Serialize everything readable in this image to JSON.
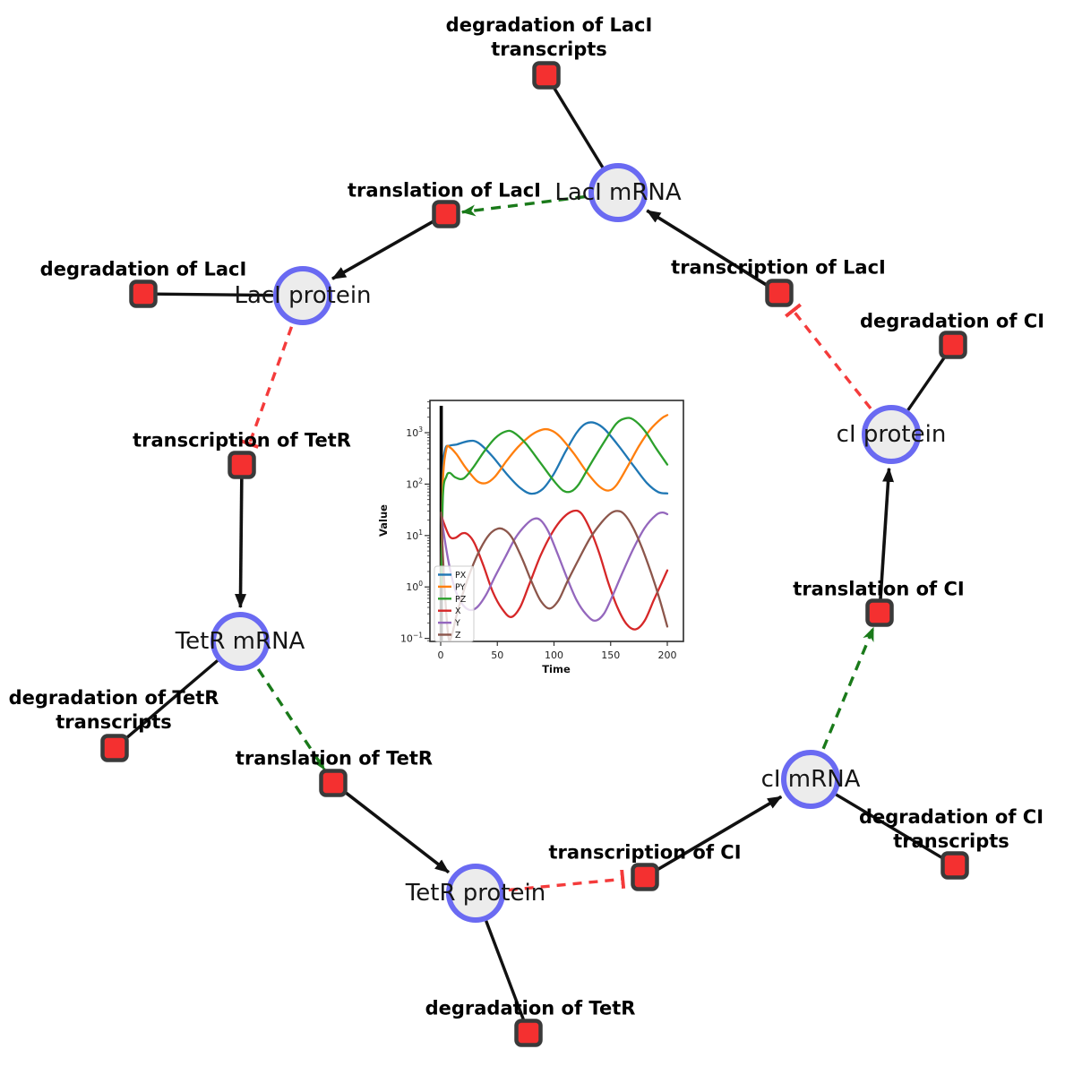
{
  "diagram": {
    "species": [
      {
        "id": "lacI_mRNA",
        "label": "LacI mRNA"
      },
      {
        "id": "lacI_protein",
        "label": "LacI protein"
      },
      {
        "id": "tetR_mRNA",
        "label": "TetR mRNA"
      },
      {
        "id": "tetR_protein",
        "label": "TetR protein"
      },
      {
        "id": "cI_mRNA",
        "label": "cI mRNA"
      },
      {
        "id": "cI_protein",
        "label": "cI protein"
      }
    ],
    "reactions": [
      {
        "id": "deg_lacI_tr",
        "label": "degradation of LacI\ntranscripts"
      },
      {
        "id": "transl_lacI",
        "label": "translation of LacI"
      },
      {
        "id": "transcr_lacI",
        "label": "transcription of LacI"
      },
      {
        "id": "deg_lacI",
        "label": "degradation of LacI"
      },
      {
        "id": "deg_cI",
        "label": "degradation of CI"
      },
      {
        "id": "transcr_tetR",
        "label": "transcription of TetR"
      },
      {
        "id": "transl_cI",
        "label": "translation of CI"
      },
      {
        "id": "deg_tetR_tr",
        "label": "degradation of TetR\ntranscripts"
      },
      {
        "id": "transl_tetR",
        "label": "translation of TetR"
      },
      {
        "id": "deg_cI_tr",
        "label": "degradation of CI\ntranscripts"
      },
      {
        "id": "transcr_cI",
        "label": "transcription of CI"
      },
      {
        "id": "deg_tetR",
        "label": "degradation of TetR"
      }
    ],
    "edge_types": {
      "production": {
        "color": "#111111",
        "style": "solid",
        "head": "arrow"
      },
      "consumption": {
        "color": "#111111",
        "style": "solid",
        "head": "none"
      },
      "modifier": {
        "color": "#1a7a1a",
        "style": "dashed",
        "head": "arrow"
      },
      "inhibition": {
        "color": "#f43b3b",
        "style": "dashed",
        "head": "tbar"
      }
    },
    "edges": [
      {
        "from": "transl_lacI",
        "to": "lacI_protein",
        "type": "production"
      },
      {
        "from": "transcr_lacI",
        "to": "lacI_mRNA",
        "type": "production"
      },
      {
        "from": "transcr_tetR",
        "to": "tetR_mRNA",
        "type": "production"
      },
      {
        "from": "transl_tetR",
        "to": "tetR_protein",
        "type": "production"
      },
      {
        "from": "transcr_cI",
        "to": "cI_mRNA",
        "type": "production"
      },
      {
        "from": "transl_cI",
        "to": "cI_protein",
        "type": "production"
      },
      {
        "from": "deg_lacI_tr",
        "to": "lacI_mRNA",
        "type": "consumption"
      },
      {
        "from": "deg_lacI",
        "to": "lacI_protein",
        "type": "consumption"
      },
      {
        "from": "deg_cI",
        "to": "cI_protein",
        "type": "consumption"
      },
      {
        "from": "deg_tetR_tr",
        "to": "tetR_mRNA",
        "type": "consumption"
      },
      {
        "from": "deg_cI_tr",
        "to": "cI_mRNA",
        "type": "consumption"
      },
      {
        "from": "deg_tetR",
        "to": "tetR_protein",
        "type": "consumption"
      },
      {
        "from": "lacI_mRNA",
        "to": "transl_lacI",
        "type": "modifier"
      },
      {
        "from": "tetR_mRNA",
        "to": "transl_tetR",
        "type": "modifier"
      },
      {
        "from": "cI_mRNA",
        "to": "transl_cI",
        "type": "modifier"
      },
      {
        "from": "lacI_protein",
        "to": "transcr_tetR",
        "type": "inhibition"
      },
      {
        "from": "tetR_protein",
        "to": "transcr_cI",
        "type": "inhibition"
      },
      {
        "from": "cI_protein",
        "to": "transcr_lacI",
        "type": "inhibition"
      }
    ],
    "colors": {
      "species_fill": "#ececec",
      "species_border": "#6a6af2",
      "reaction_fill": "#f43030",
      "reaction_border": "#3a3a3a"
    }
  },
  "chart_data": {
    "type": "line",
    "title": "",
    "xlabel": "Time",
    "ylabel": "Value",
    "x_ticks": [
      0,
      50,
      100,
      150,
      200
    ],
    "xlim": [
      -9.5,
      214
    ],
    "y_scale": "log",
    "y_tick_exponents": [
      3,
      2,
      1,
      0,
      -1
    ],
    "ylim_log10": [
      -1.06,
      3.63
    ],
    "grid": false,
    "legend_position": "lower left",
    "annotations": [
      {
        "type": "vline",
        "x": 0,
        "color": "#000000"
      }
    ],
    "series": [
      {
        "name": "PX",
        "color": "#1f77b4",
        "points": [
          [
            0.5,
            2
          ],
          [
            2,
            150
          ],
          [
            4,
            480
          ],
          [
            8,
            560
          ],
          [
            14,
            590
          ],
          [
            25,
            690
          ],
          [
            33,
            640
          ],
          [
            45,
            360
          ],
          [
            58,
            160
          ],
          [
            70,
            85
          ],
          [
            80,
            65
          ],
          [
            90,
            80
          ],
          [
            100,
            160
          ],
          [
            110,
            420
          ],
          [
            120,
            1000
          ],
          [
            128,
            1500
          ],
          [
            136,
            1550
          ],
          [
            145,
            1150
          ],
          [
            158,
            520
          ],
          [
            170,
            230
          ],
          [
            182,
            105
          ],
          [
            192,
            70
          ],
          [
            200,
            66
          ]
        ]
      },
      {
        "name": "PY",
        "color": "#ff7f0e",
        "points": [
          [
            0.5,
            1.5
          ],
          [
            2,
            120
          ],
          [
            5,
            480
          ],
          [
            8,
            520
          ],
          [
            14,
            380
          ],
          [
            22,
            210
          ],
          [
            32,
            115
          ],
          [
            40,
            105
          ],
          [
            48,
            140
          ],
          [
            58,
            280
          ],
          [
            68,
            520
          ],
          [
            80,
            900
          ],
          [
            90,
            1150
          ],
          [
            97,
            1120
          ],
          [
            105,
            850
          ],
          [
            118,
            380
          ],
          [
            130,
            160
          ],
          [
            140,
            90
          ],
          [
            148,
            75
          ],
          [
            155,
            95
          ],
          [
            165,
            220
          ],
          [
            175,
            550
          ],
          [
            185,
            1150
          ],
          [
            195,
            1900
          ],
          [
            200,
            2200
          ]
        ]
      },
      {
        "name": "PZ",
        "color": "#2ca02c",
        "points": [
          [
            0.5,
            1
          ],
          [
            2,
            60
          ],
          [
            5,
            140
          ],
          [
            8,
            165
          ],
          [
            13,
            135
          ],
          [
            20,
            128
          ],
          [
            28,
            200
          ],
          [
            38,
            420
          ],
          [
            48,
            780
          ],
          [
            57,
            1050
          ],
          [
            64,
            1020
          ],
          [
            75,
            620
          ],
          [
            88,
            260
          ],
          [
            100,
            115
          ],
          [
            108,
            75
          ],
          [
            115,
            72
          ],
          [
            122,
            100
          ],
          [
            132,
            240
          ],
          [
            145,
            700
          ],
          [
            155,
            1500
          ],
          [
            163,
            1900
          ],
          [
            170,
            1800
          ],
          [
            180,
            1100
          ],
          [
            190,
            500
          ],
          [
            200,
            240
          ]
        ]
      },
      {
        "name": "X",
        "color": "#d62728",
        "points": [
          [
            0.5,
            25
          ],
          [
            3,
            17
          ],
          [
            8,
            9.5
          ],
          [
            13,
            9
          ],
          [
            19,
            11
          ],
          [
            24,
            10.5
          ],
          [
            30,
            7
          ],
          [
            38,
            2.5
          ],
          [
            46,
            0.8
          ],
          [
            54,
            0.38
          ],
          [
            62,
            0.26
          ],
          [
            70,
            0.4
          ],
          [
            78,
            1.1
          ],
          [
            88,
            4
          ],
          [
            98,
            11
          ],
          [
            108,
            22
          ],
          [
            117,
            30
          ],
          [
            124,
            27
          ],
          [
            132,
            13
          ],
          [
            140,
            4.5
          ],
          [
            148,
            1.2
          ],
          [
            156,
            0.4
          ],
          [
            164,
            0.19
          ],
          [
            172,
            0.15
          ],
          [
            180,
            0.22
          ],
          [
            188,
            0.55
          ],
          [
            195,
            1.2
          ],
          [
            200,
            2.1
          ]
        ]
      },
      {
        "name": "Y",
        "color": "#9467bd",
        "points": [
          [
            0.5,
            26
          ],
          [
            3,
            10
          ],
          [
            7,
            3
          ],
          [
            12,
            1
          ],
          [
            18,
            0.5
          ],
          [
            25,
            0.36
          ],
          [
            32,
            0.4
          ],
          [
            40,
            0.7
          ],
          [
            48,
            1.6
          ],
          [
            57,
            3.8
          ],
          [
            66,
            9
          ],
          [
            75,
            16
          ],
          [
            82,
            21
          ],
          [
            88,
            20
          ],
          [
            95,
            12
          ],
          [
            103,
            4.5
          ],
          [
            112,
            1.4
          ],
          [
            120,
            0.55
          ],
          [
            128,
            0.3
          ],
          [
            136,
            0.22
          ],
          [
            144,
            0.3
          ],
          [
            152,
            0.7
          ],
          [
            160,
            1.8
          ],
          [
            170,
            5.5
          ],
          [
            180,
            14
          ],
          [
            190,
            25
          ],
          [
            196,
            28
          ],
          [
            200,
            26
          ]
        ]
      },
      {
        "name": "Z",
        "color": "#8c564b",
        "points": [
          [
            0.5,
            28
          ],
          [
            2,
            4
          ],
          [
            4,
            0.6
          ],
          [
            7,
            0.1
          ],
          [
            10,
            0.12
          ],
          [
            14,
            0.28
          ],
          [
            20,
            0.8
          ],
          [
            27,
            2.2
          ],
          [
            35,
            5.5
          ],
          [
            43,
            10.5
          ],
          [
            50,
            13.5
          ],
          [
            56,
            13
          ],
          [
            63,
            9
          ],
          [
            72,
            3.5
          ],
          [
            80,
            1.3
          ],
          [
            88,
            0.55
          ],
          [
            96,
            0.38
          ],
          [
            104,
            0.55
          ],
          [
            112,
            1.3
          ],
          [
            122,
            3.5
          ],
          [
            132,
            9
          ],
          [
            142,
            18
          ],
          [
            150,
            27
          ],
          [
            156,
            30
          ],
          [
            162,
            26
          ],
          [
            170,
            14
          ],
          [
            178,
            5.5
          ],
          [
            186,
            1.8
          ],
          [
            193,
            0.6
          ],
          [
            200,
            0.17
          ]
        ]
      }
    ]
  }
}
